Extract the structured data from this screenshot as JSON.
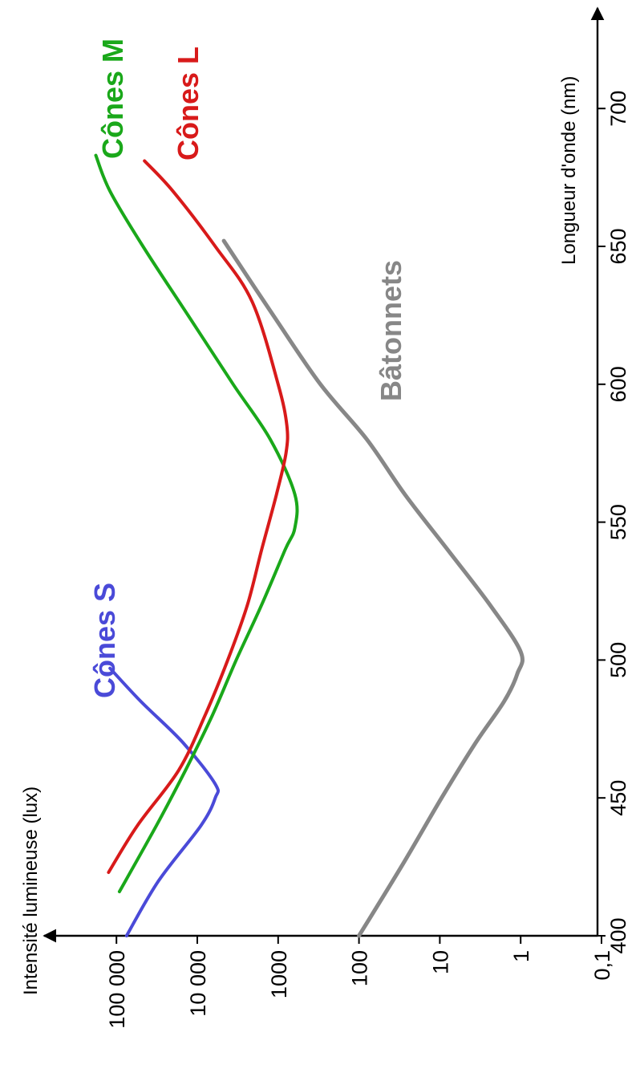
{
  "chart_data": {
    "type": "line",
    "orientation": "rotated-90-ccw",
    "xlabel": "Longueur d'onde (nm)",
    "ylabel": "Intensité lumineuse (lux)",
    "xlim": [
      400,
      750
    ],
    "ylim": [
      0.1,
      200000
    ],
    "y_scale": "log",
    "x_ticks": [
      400,
      450,
      500,
      550,
      600,
      650,
      700
    ],
    "x_tick_labels": [
      "400",
      "450",
      "500",
      "550",
      "600",
      "650",
      "700"
    ],
    "y_ticks": [
      0.1,
      1,
      10,
      100,
      1000,
      10000,
      100000
    ],
    "y_tick_labels": [
      "0,1",
      "1",
      "10",
      "100",
      "1000",
      "10 000",
      "100 000"
    ],
    "grid": false,
    "series": [
      {
        "name": "Cônes S",
        "color": "#4a4ad8",
        "x": [
          400,
          420,
          440,
          450,
          455,
          470,
          485,
          497
        ],
        "y": [
          75000,
          30000,
          9000,
          6000,
          6000,
          15000,
          50000,
          120000
        ]
      },
      {
        "name": "Cônes M",
        "color": "#1aa81a",
        "x": [
          416,
          440,
          460,
          480,
          500,
          520,
          540,
          548,
          560,
          580,
          600,
          625,
          650,
          670,
          683
        ],
        "y": [
          92000,
          32000,
          14000,
          6500,
          3300,
          1600,
          820,
          620,
          620,
          1250,
          3600,
          13000,
          47000,
          120000,
          180000
        ]
      },
      {
        "name": "Cônes L",
        "color": "#d81a1a",
        "x": [
          423,
          440,
          460,
          480,
          500,
          520,
          540,
          560,
          575,
          585,
          600,
          630,
          650,
          670,
          681
        ],
        "y": [
          125000,
          55000,
          17000,
          8000,
          4200,
          2400,
          1600,
          1050,
          800,
          780,
          1000,
          2100,
          6000,
          20000,
          45000
        ]
      },
      {
        "name": "Bâtonnets",
        "color": "#878787",
        "x": [
          400,
          425,
          450,
          470,
          485,
          495,
          503,
          520,
          540,
          560,
          580,
          600,
          625,
          652
        ],
        "y": [
          100,
          30,
          9.5,
          3.6,
          1.6,
          1.1,
          1.0,
          2.4,
          8,
          27,
          80,
          300,
          1150,
          4700
        ]
      }
    ]
  }
}
